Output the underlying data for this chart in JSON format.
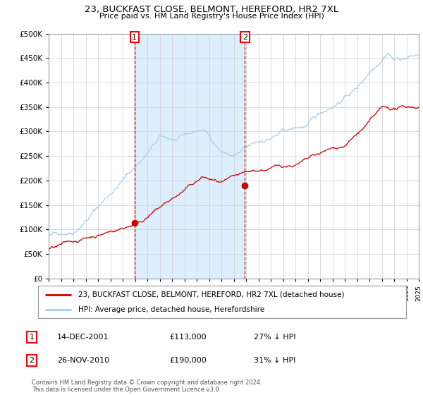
{
  "title": "23, BUCKFAST CLOSE, BELMONT, HEREFORD, HR2 7XL",
  "subtitle": "Price paid vs. HM Land Registry's House Price Index (HPI)",
  "legend_line1": "23, BUCKFAST CLOSE, BELMONT, HEREFORD, HR2 7XL (detached house)",
  "legend_line2": "HPI: Average price, detached house, Herefordshire",
  "annotation1_label": "1",
  "annotation1_date": "14-DEC-2001",
  "annotation1_price": "£113,000",
  "annotation1_hpi": "27% ↓ HPI",
  "annotation2_label": "2",
  "annotation2_date": "26-NOV-2010",
  "annotation2_price": "£190,000",
  "annotation2_hpi": "31% ↓ HPI",
  "footer": "Contains HM Land Registry data © Crown copyright and database right 2024.\nThis data is licensed under the Open Government Licence v3.0.",
  "hpi_color": "#aacce8",
  "price_color": "#cc0000",
  "marker_color": "#cc0000",
  "vline_color": "#cc0000",
  "shade_color": "#ddeeff",
  "background_color": "#ffffff",
  "grid_color": "#cccccc",
  "year_start": 1995,
  "year_end": 2025,
  "ylim_max": 500000,
  "purchase1_year": 2001.96,
  "purchase1_value": 113000,
  "purchase2_year": 2010.9,
  "purchase2_value": 190000
}
